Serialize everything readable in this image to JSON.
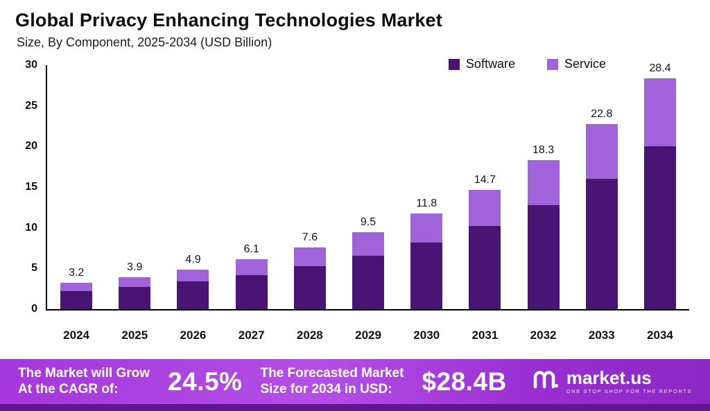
{
  "header": {
    "title": "Global Privacy Enhancing Technologies Market",
    "subtitle": "Size, By Component, 2025-2034 (USD Billion)"
  },
  "chart_data": {
    "type": "bar",
    "stacked": true,
    "title": "Global Privacy Enhancing Technologies Market",
    "subtitle": "Size, By Component, 2025-2034 (USD Billion)",
    "categories": [
      "2024",
      "2025",
      "2026",
      "2027",
      "2028",
      "2029",
      "2030",
      "2031",
      "2032",
      "2033",
      "2034"
    ],
    "series": [
      {
        "name": "Software",
        "color": "#4a1474",
        "values": [
          2.2,
          2.7,
          3.4,
          4.2,
          5.3,
          6.6,
          8.2,
          10.2,
          12.8,
          16.0,
          20.0
        ]
      },
      {
        "name": "Service",
        "color": "#a163d9",
        "values": [
          1.0,
          1.2,
          1.5,
          1.9,
          2.3,
          2.9,
          3.6,
          4.5,
          5.5,
          6.8,
          8.4
        ]
      }
    ],
    "totals": [
      "3.2",
      "3.9",
      "4.9",
      "6.1",
      "7.6",
      "9.5",
      "11.8",
      "14.7",
      "18.3",
      "22.8",
      "28.4"
    ],
    "ylabel": "USD Billion",
    "ylim": [
      0,
      30
    ],
    "yticks": [
      0,
      5,
      10,
      15,
      20,
      25,
      30
    ],
    "grid": false,
    "legend_position": "top-right"
  },
  "banner": {
    "grow_line1": "The Market will Grow",
    "grow_line2": "At the CAGR of:",
    "cagr_value": "24.5%",
    "forecast_line1": "The Forecasted Market",
    "forecast_line2": "Size for 2034 in USD:",
    "forecast_value": "$28.4B",
    "brand": "market.us",
    "tagline": "ONE STOP SHOP FOR THE REPORTS"
  }
}
